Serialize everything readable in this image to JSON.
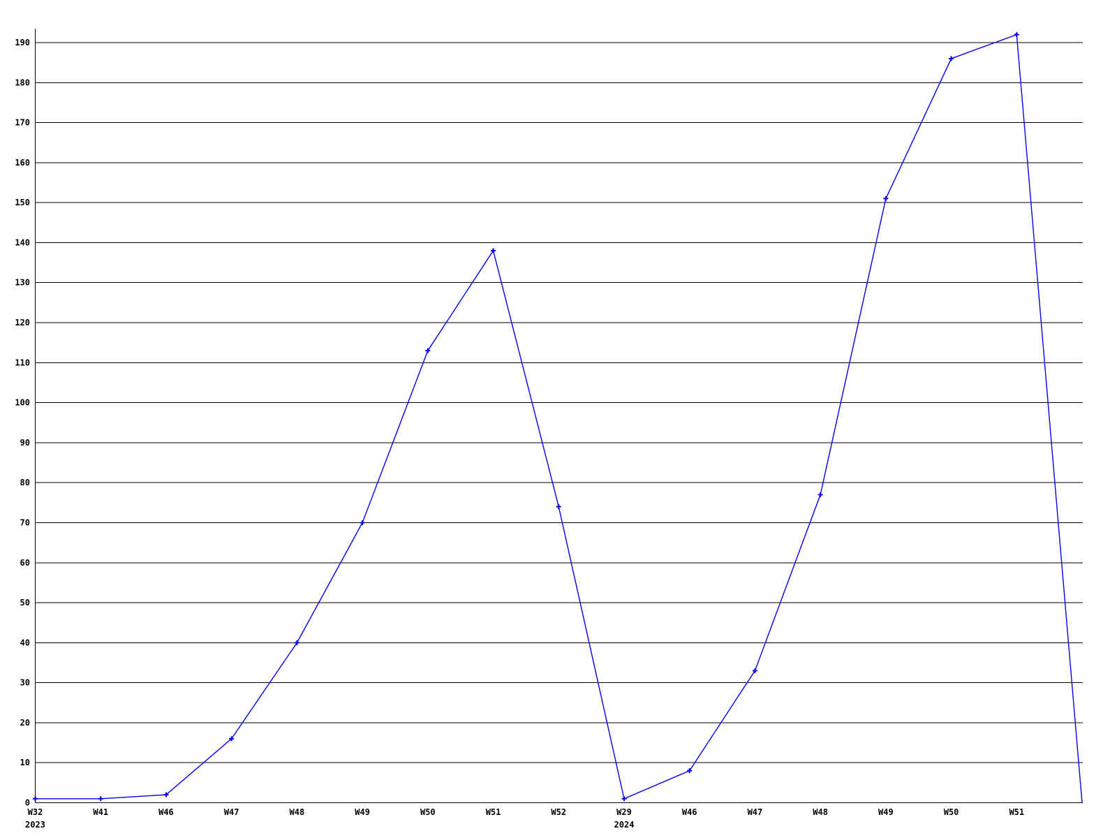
{
  "chart_data": {
    "type": "line",
    "categories": [
      "W32",
      "W41",
      "W46",
      "W47",
      "W48",
      "W49",
      "W50",
      "W51",
      "W52",
      "W29",
      "W46",
      "W47",
      "W48",
      "W49",
      "W50",
      "W51",
      ""
    ],
    "year_markers": [
      {
        "category_index": 0,
        "year": "2023"
      },
      {
        "category_index": 9,
        "year": "2024"
      }
    ],
    "values": [
      1,
      1,
      2,
      16,
      40,
      70,
      113,
      138,
      74,
      1,
      8,
      33,
      77,
      151,
      186,
      192,
      0
    ],
    "y_tick_labels": [
      "0",
      "10",
      "20",
      "30",
      "40",
      "50",
      "60",
      "70",
      "80",
      "90",
      "100",
      "110",
      "120",
      "130",
      "140",
      "150",
      "160",
      "170",
      "180",
      "190"
    ],
    "ylim": [
      0,
      190
    ],
    "y_tick_step": 10,
    "grid": "horizontal-only",
    "legend": "none",
    "line_color": "#0000ee",
    "marker": "plus",
    "axis_color": "#000000",
    "grid_color": "#000000",
    "background": "#ffffff"
  }
}
